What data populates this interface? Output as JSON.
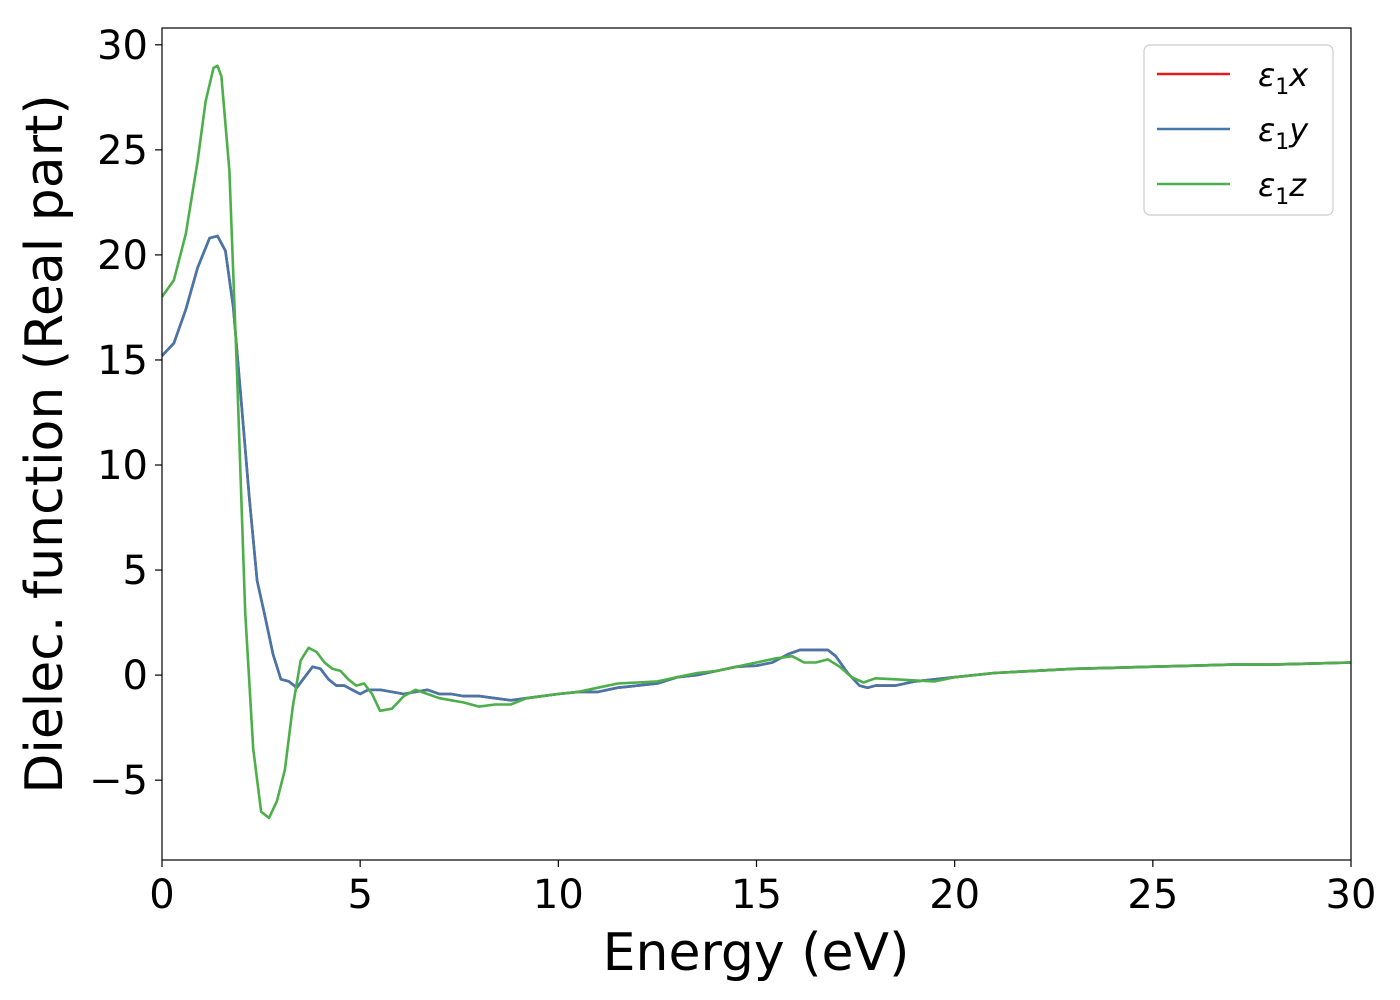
{
  "chart_data": {
    "type": "line",
    "xlabel": "Energy (eV)",
    "ylabel": "Dielec. function (Real part)",
    "xlim": [
      0,
      30
    ],
    "ylim": [
      -8.8,
      30.8
    ],
    "xticks": [
      "0",
      "5",
      "10",
      "15",
      "20",
      "25",
      "30"
    ],
    "yticks": [
      "−5",
      "0",
      "5",
      "10",
      "15",
      "20",
      "25",
      "30"
    ],
    "grid": false,
    "legend_position": "top-right",
    "series": [
      {
        "name": "ε₁x",
        "legend": {
          "base": "ε",
          "sub": "1",
          "var": "x"
        },
        "color": "#e41a1c",
        "x": [
          0,
          0.3,
          0.6,
          0.9,
          1.2,
          1.4,
          1.6,
          1.8,
          2.0,
          2.2,
          2.4,
          2.6,
          2.8,
          3.0,
          3.2,
          3.4,
          3.6,
          3.8,
          4.0,
          4.2,
          4.4,
          4.6,
          4.8,
          5.0,
          5.2,
          5.5,
          5.8,
          6.1,
          6.4,
          6.7,
          7.0,
          7.3,
          7.6,
          8.0,
          8.4,
          8.8,
          9.2,
          9.6,
          10.0,
          10.5,
          11.0,
          11.5,
          12.0,
          12.5,
          13.0,
          13.5,
          14.0,
          14.5,
          15.0,
          15.4,
          15.8,
          16.1,
          16.4,
          16.8,
          17.0,
          17.3,
          17.6,
          17.8,
          18.0,
          18.5,
          19.0,
          19.5,
          20.0,
          21.0,
          22.0,
          23.0,
          24.0,
          25.0,
          26.0,
          27.0,
          28.0,
          29.0,
          30.0
        ],
        "values": [
          15.2,
          15.8,
          17.4,
          19.4,
          20.8,
          20.9,
          20.2,
          17.5,
          13.0,
          8.5,
          4.5,
          2.8,
          1.0,
          -0.2,
          -0.3,
          -0.6,
          -0.1,
          0.4,
          0.3,
          -0.2,
          -0.5,
          -0.5,
          -0.7,
          -0.9,
          -0.7,
          -0.7,
          -0.8,
          -0.9,
          -0.8,
          -0.7,
          -0.9,
          -0.9,
          -1.0,
          -1.0,
          -1.1,
          -1.2,
          -1.1,
          -1.0,
          -0.9,
          -0.8,
          -0.8,
          -0.6,
          -0.5,
          -0.4,
          -0.1,
          0.0,
          0.2,
          0.4,
          0.45,
          0.6,
          1.0,
          1.2,
          1.2,
          1.2,
          0.9,
          0.1,
          -0.5,
          -0.6,
          -0.5,
          -0.5,
          -0.3,
          -0.2,
          -0.1,
          0.1,
          0.2,
          0.3,
          0.35,
          0.4,
          0.45,
          0.5,
          0.5,
          0.55,
          0.6
        ]
      },
      {
        "name": "ε₁y",
        "legend": {
          "base": "ε",
          "sub": "1",
          "var": "y"
        },
        "color": "#4477aa",
        "x": [
          0,
          0.3,
          0.6,
          0.9,
          1.2,
          1.4,
          1.6,
          1.8,
          2.0,
          2.2,
          2.4,
          2.6,
          2.8,
          3.0,
          3.2,
          3.4,
          3.6,
          3.8,
          4.0,
          4.2,
          4.4,
          4.6,
          4.8,
          5.0,
          5.2,
          5.5,
          5.8,
          6.1,
          6.4,
          6.7,
          7.0,
          7.3,
          7.6,
          8.0,
          8.4,
          8.8,
          9.2,
          9.6,
          10.0,
          10.5,
          11.0,
          11.5,
          12.0,
          12.5,
          13.0,
          13.5,
          14.0,
          14.5,
          15.0,
          15.4,
          15.8,
          16.1,
          16.4,
          16.8,
          17.0,
          17.3,
          17.6,
          17.8,
          18.0,
          18.5,
          19.0,
          19.5,
          20.0,
          21.0,
          22.0,
          23.0,
          24.0,
          25.0,
          26.0,
          27.0,
          28.0,
          29.0,
          30.0
        ],
        "values": [
          15.2,
          15.8,
          17.4,
          19.4,
          20.8,
          20.9,
          20.2,
          17.5,
          13.0,
          8.5,
          4.5,
          2.8,
          1.0,
          -0.2,
          -0.3,
          -0.6,
          -0.1,
          0.4,
          0.3,
          -0.2,
          -0.5,
          -0.5,
          -0.7,
          -0.9,
          -0.7,
          -0.7,
          -0.8,
          -0.9,
          -0.8,
          -0.7,
          -0.9,
          -0.9,
          -1.0,
          -1.0,
          -1.1,
          -1.2,
          -1.1,
          -1.0,
          -0.9,
          -0.8,
          -0.8,
          -0.6,
          -0.5,
          -0.4,
          -0.1,
          0.0,
          0.2,
          0.4,
          0.45,
          0.6,
          1.0,
          1.2,
          1.2,
          1.2,
          0.9,
          0.1,
          -0.5,
          -0.6,
          -0.5,
          -0.5,
          -0.3,
          -0.2,
          -0.1,
          0.1,
          0.2,
          0.3,
          0.35,
          0.4,
          0.45,
          0.5,
          0.5,
          0.55,
          0.6
        ]
      },
      {
        "name": "ε₁z",
        "legend": {
          "base": "ε",
          "sub": "1",
          "var": "z"
        },
        "color": "#4daf4a",
        "x": [
          0,
          0.3,
          0.6,
          0.9,
          1.1,
          1.3,
          1.4,
          1.5,
          1.7,
          1.9,
          2.1,
          2.3,
          2.5,
          2.7,
          2.9,
          3.1,
          3.3,
          3.5,
          3.7,
          3.9,
          4.1,
          4.3,
          4.5,
          4.7,
          4.9,
          5.1,
          5.3,
          5.5,
          5.8,
          6.1,
          6.4,
          6.7,
          7.0,
          7.3,
          7.6,
          8.0,
          8.4,
          8.8,
          9.2,
          9.6,
          10.0,
          10.5,
          11.0,
          11.5,
          12.0,
          12.5,
          13.0,
          13.5,
          14.0,
          14.5,
          15.0,
          15.5,
          15.9,
          16.2,
          16.5,
          16.8,
          17.1,
          17.4,
          17.7,
          18.0,
          18.5,
          19.0,
          19.5,
          20.0,
          21.0,
          22.0,
          23.0,
          24.0,
          25.0,
          26.0,
          27.0,
          28.0,
          29.0,
          30.0
        ],
        "values": [
          18.0,
          18.8,
          21.0,
          24.5,
          27.3,
          28.9,
          29.0,
          28.5,
          24.0,
          14.0,
          3.0,
          -3.5,
          -6.5,
          -6.8,
          -6.0,
          -4.5,
          -1.5,
          0.7,
          1.3,
          1.1,
          0.6,
          0.3,
          0.2,
          -0.2,
          -0.5,
          -0.4,
          -0.9,
          -1.7,
          -1.6,
          -1.0,
          -0.7,
          -0.9,
          -1.1,
          -1.2,
          -1.3,
          -1.5,
          -1.4,
          -1.4,
          -1.1,
          -1.0,
          -0.9,
          -0.8,
          -0.6,
          -0.4,
          -0.35,
          -0.3,
          -0.1,
          0.1,
          0.2,
          0.4,
          0.6,
          0.8,
          0.9,
          0.6,
          0.6,
          0.75,
          0.4,
          -0.1,
          -0.35,
          -0.15,
          -0.2,
          -0.25,
          -0.3,
          -0.1,
          0.1,
          0.2,
          0.3,
          0.35,
          0.4,
          0.45,
          0.5,
          0.5,
          0.55,
          0.6
        ]
      }
    ]
  }
}
